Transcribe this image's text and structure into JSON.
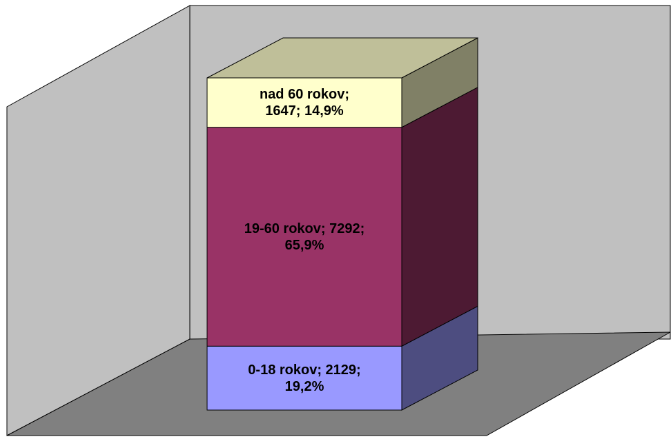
{
  "chart_data": {
    "type": "bar",
    "stacked": true,
    "series": [
      {
        "color": "#9999ff",
        "values": [
          2129
        ],
        "value_labels": [
          "0-18 rokov; 2129; 19,2%"
        ]
      },
      {
        "color": "#993366",
        "values": [
          7292
        ],
        "value_labels": [
          "19-60 rokov; 7292; 65,9%"
        ]
      },
      {
        "color": "#ffffcc",
        "values": [
          1647
        ],
        "value_labels": [
          "nad 60 rokov; 1647; 14,9%"
        ]
      }
    ]
  }
}
